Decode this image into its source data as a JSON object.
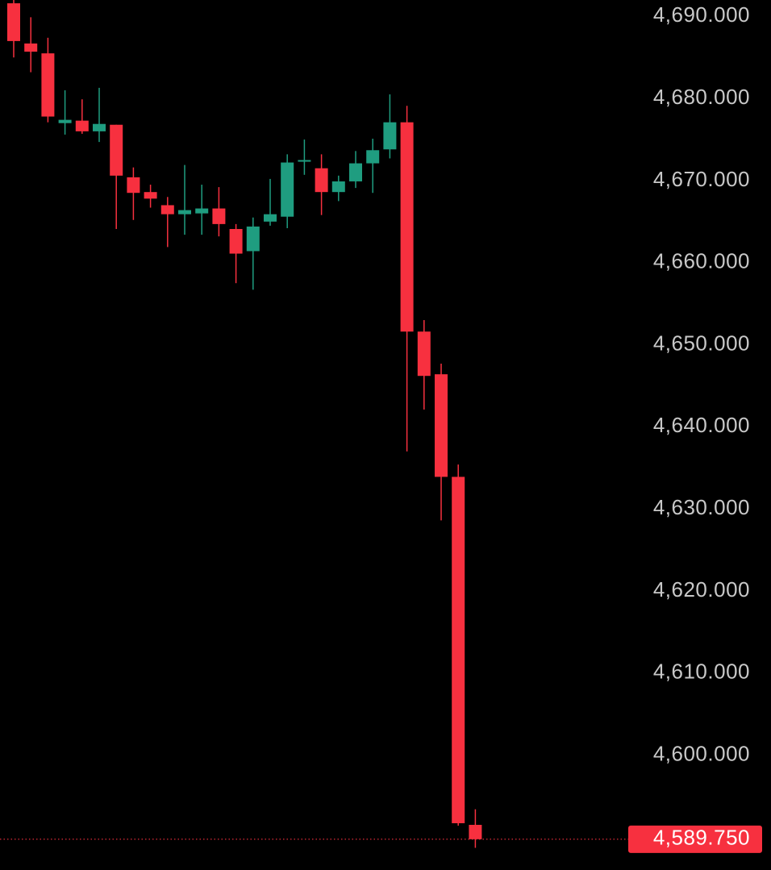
{
  "chart_data": {
    "type": "candlestick",
    "up_color": "#1f9d80",
    "down_color": "#f7303f",
    "open": [
      4691.6,
      4686.7,
      4685.5,
      4677.0,
      4677.3,
      4676.0,
      4676.8,
      4670.4,
      4668.6,
      4667.0,
      4665.9,
      4666.0,
      4666.6,
      4664.1,
      4661.4,
      4665.0,
      4665.6,
      4672.3,
      4671.5,
      4668.6,
      4669.9,
      4672.1,
      4673.8,
      4677.1,
      4651.6,
      4646.4,
      4633.9,
      4591.5
    ],
    "high": [
      4692.0,
      4689.9,
      4687.4,
      4681.0,
      4679.9,
      4681.3,
      4676.8,
      4671.6,
      4669.5,
      4668.0,
      4671.9,
      4669.5,
      4669.2,
      4664.7,
      4665.5,
      4670.2,
      4673.2,
      4675.0,
      4673.2,
      4670.6,
      4673.6,
      4675.1,
      4680.5,
      4679.1,
      4653.0,
      4647.7,
      4635.4,
      4593.4
    ],
    "low": [
      4685.0,
      4683.2,
      4677.1,
      4675.6,
      4675.7,
      4674.7,
      4664.1,
      4665.2,
      4666.7,
      4661.9,
      4663.4,
      4663.4,
      4663.2,
      4657.5,
      4656.7,
      4664.5,
      4664.2,
      4670.7,
      4665.8,
      4667.5,
      4669.1,
      4668.5,
      4672.7,
      4637.0,
      4642.1,
      4628.6,
      4591.4,
      4588.7
    ],
    "close": [
      4687.0,
      4685.7,
      4677.8,
      4677.4,
      4676.0,
      4676.9,
      4670.6,
      4668.5,
      4667.8,
      4665.9,
      4666.4,
      4666.6,
      4664.7,
      4661.1,
      4664.4,
      4665.9,
      4672.2,
      4672.5,
      4668.6,
      4669.9,
      4672.1,
      4673.7,
      4677.1,
      4651.6,
      4646.2,
      4633.9,
      4591.7,
      4589.75
    ],
    "ylim": [
      4586,
      4692
    ],
    "yticks": [
      {
        "value": 4690,
        "label": "4,690.000"
      },
      {
        "value": 4680,
        "label": "4,680.000"
      },
      {
        "value": 4670,
        "label": "4,670.000"
      },
      {
        "value": 4660,
        "label": "4,660.000"
      },
      {
        "value": 4650,
        "label": "4,650.000"
      },
      {
        "value": 4640,
        "label": "4,640.000"
      },
      {
        "value": 4630,
        "label": "4,630.000"
      },
      {
        "value": 4620,
        "label": "4,620.000"
      },
      {
        "value": 4610,
        "label": "4,610.000"
      },
      {
        "value": 4600,
        "label": "4,600.000"
      }
    ],
    "last_price": {
      "value": 4589.75,
      "label": "4,589.750"
    }
  }
}
